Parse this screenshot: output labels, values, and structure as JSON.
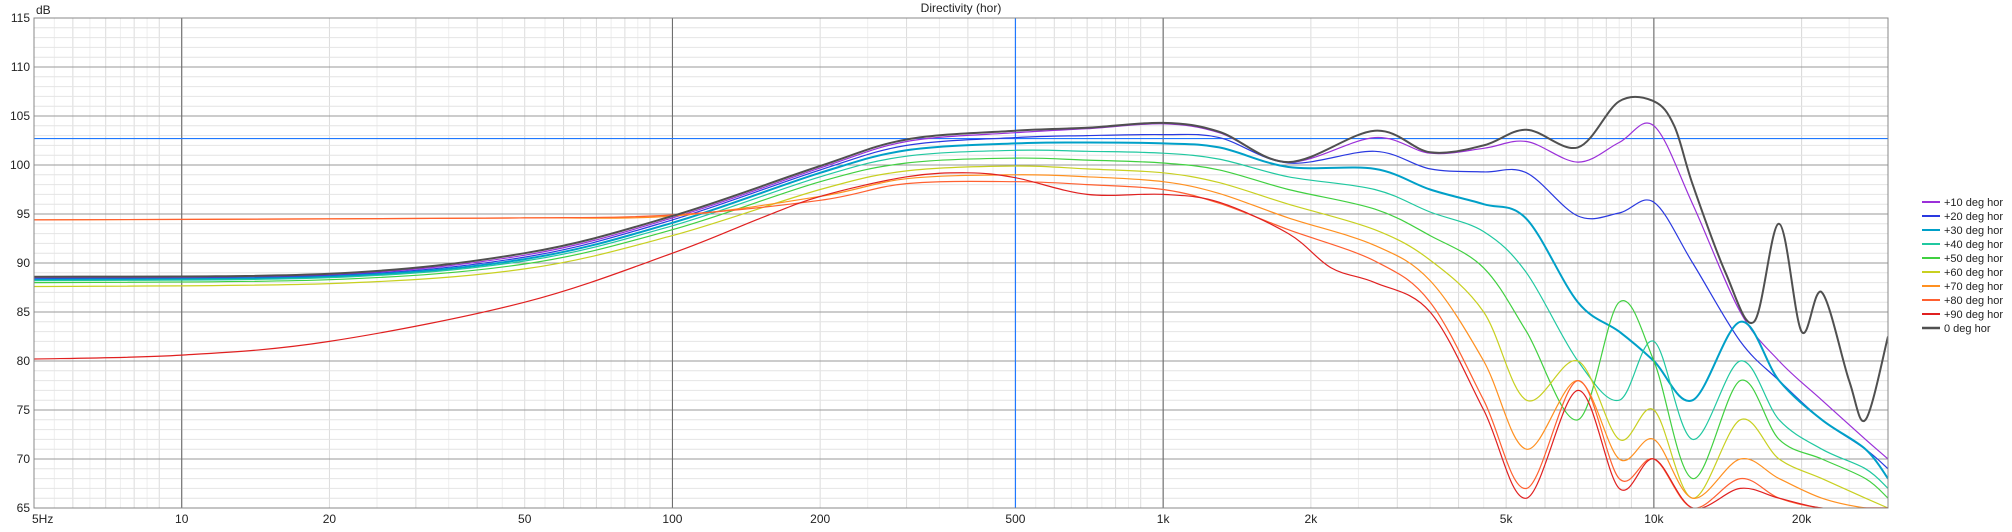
{
  "chart_data": {
    "type": "line",
    "title": "Directivity (hor)",
    "ylabel": "dB",
    "xlabel": "",
    "x_scale": "log",
    "xlim": [
      5,
      30000
    ],
    "ylim": [
      65,
      115
    ],
    "y_ticks": [
      65,
      70,
      75,
      80,
      85,
      90,
      95,
      100,
      105,
      110,
      115
    ],
    "x_ticks": [
      {
        "value": 5,
        "label": "5Hz"
      },
      {
        "value": 10,
        "label": "10"
      },
      {
        "value": 20,
        "label": "20"
      },
      {
        "value": 50,
        "label": "50"
      },
      {
        "value": 100,
        "label": "100"
      },
      {
        "value": 200,
        "label": "200"
      },
      {
        "value": 500,
        "label": "500"
      },
      {
        "value": 1000,
        "label": "1k"
      },
      {
        "value": 2000,
        "label": "2k"
      },
      {
        "value": 5000,
        "label": "5k"
      },
      {
        "value": 10000,
        "label": "10k"
      },
      {
        "value": 20000,
        "label": "20k"
      }
    ],
    "grid": true,
    "legend_position": "right",
    "markers": {
      "hline_db": 102.7,
      "vline_hz": 500,
      "color": "#1e78ff"
    },
    "series": [
      {
        "name": "+10 deg hor",
        "color": "#9b30d9",
        "x": [
          5,
          20,
          50,
          100,
          200,
          300,
          500,
          700,
          1000,
          1300,
          1800,
          2700,
          3500,
          4500,
          5500,
          7000,
          8500,
          10000,
          12000,
          15000,
          18000,
          22000,
          27000,
          30000
        ],
        "y": [
          88.5,
          88.8,
          90.8,
          94.6,
          99.7,
          102.4,
          103.3,
          103.7,
          104.2,
          103.3,
          100.3,
          102.8,
          101.2,
          101.7,
          102.4,
          100.3,
          102.3,
          104.0,
          96.0,
          85.0,
          80.0,
          76.0,
          72.0,
          70.0
        ]
      },
      {
        "name": "+20 deg hor",
        "color": "#2a39e0",
        "x": [
          5,
          20,
          50,
          100,
          200,
          300,
          500,
          700,
          1000,
          1300,
          1800,
          2700,
          3500,
          4500,
          5500,
          7000,
          8500,
          10000,
          12000,
          15000,
          18000,
          22000,
          27000,
          30000
        ],
        "y": [
          88.4,
          88.7,
          90.6,
          94.4,
          99.5,
          102.0,
          102.8,
          103.0,
          103.1,
          102.8,
          100.2,
          101.4,
          99.6,
          99.3,
          99.2,
          94.8,
          95.1,
          96.2,
          90.0,
          82.0,
          78.0,
          74.0,
          71.0,
          69.0
        ]
      },
      {
        "name": "+30 deg hor",
        "color": "#00a0c8",
        "x": [
          5,
          20,
          50,
          100,
          200,
          300,
          500,
          700,
          1000,
          1300,
          1800,
          2700,
          3500,
          4500,
          5500,
          7000,
          8500,
          10000,
          12000,
          15000,
          18000,
          22000,
          27000,
          30000
        ],
        "y": [
          88.3,
          88.6,
          90.4,
          94.1,
          99.2,
          101.5,
          102.2,
          102.3,
          102.2,
          101.8,
          99.8,
          99.6,
          97.5,
          96.0,
          94.5,
          86.0,
          83.0,
          80.0,
          76.0,
          84.0,
          78.0,
          74.0,
          71.0,
          68.0
        ]
      },
      {
        "name": "+40 deg hor",
        "color": "#20c8a0",
        "x": [
          5,
          20,
          50,
          100,
          200,
          300,
          500,
          700,
          1000,
          1300,
          1800,
          2700,
          3500,
          4500,
          5500,
          7000,
          8500,
          10000,
          12000,
          15000,
          18000,
          22000,
          27000,
          30000
        ],
        "y": [
          88.2,
          88.5,
          90.2,
          93.8,
          98.8,
          100.9,
          101.5,
          101.4,
          101.2,
          100.6,
          98.8,
          97.5,
          95.2,
          93.2,
          89.0,
          80.0,
          76.0,
          82.0,
          72.0,
          80.0,
          74.0,
          71.0,
          69.0,
          67.0
        ]
      },
      {
        "name": "+50 deg hor",
        "color": "#40d040",
        "x": [
          5,
          20,
          50,
          100,
          200,
          300,
          500,
          700,
          1000,
          1300,
          1800,
          2700,
          3500,
          4500,
          5500,
          7000,
          8500,
          10000,
          12000,
          15000,
          18000,
          22000,
          27000,
          30000
        ],
        "y": [
          88.0,
          88.3,
          89.9,
          93.4,
          98.3,
          100.2,
          100.7,
          100.5,
          100.2,
          99.5,
          97.5,
          95.5,
          92.8,
          89.5,
          83.0,
          74.0,
          86.0,
          80.0,
          68.0,
          78.0,
          72.0,
          70.0,
          68.0,
          66.0
        ]
      },
      {
        "name": "+60 deg hor",
        "color": "#c8d020",
        "x": [
          5,
          20,
          50,
          100,
          200,
          300,
          500,
          700,
          1000,
          1300,
          1800,
          2700,
          3500,
          4500,
          5500,
          7000,
          8500,
          10000,
          12000,
          15000,
          18000,
          22000,
          27000,
          30000
        ],
        "y": [
          87.6,
          87.9,
          89.4,
          92.8,
          97.5,
          99.4,
          99.9,
          99.6,
          99.2,
          98.2,
          96.0,
          93.4,
          90.3,
          85.0,
          76.0,
          80.0,
          72.0,
          75.0,
          66.0,
          74.0,
          70.0,
          68.0,
          66.0,
          65.0
        ]
      },
      {
        "name": "+70 deg hor",
        "color": "#ff9020",
        "x": [
          5,
          20,
          50,
          100,
          200,
          300,
          500,
          700,
          1000,
          1300,
          1800,
          2700,
          3500,
          4500,
          5500,
          7000,
          8500,
          10000,
          12000,
          15000,
          18000,
          22000,
          27000,
          30000
        ],
        "y": [
          94.4,
          94.5,
          94.6,
          94.8,
          96.8,
          98.6,
          99.0,
          98.8,
          98.3,
          97.1,
          94.6,
          91.8,
          88.2,
          80.0,
          71.0,
          78.0,
          70.0,
          72.0,
          66.0,
          70.0,
          68.0,
          66.0,
          65.0,
          65.0
        ]
      },
      {
        "name": "+80 deg hor",
        "color": "#ff6030",
        "x": [
          5,
          20,
          50,
          100,
          200,
          300,
          500,
          700,
          1000,
          1300,
          1800,
          2700,
          3500,
          4500,
          5500,
          7000,
          8500,
          10000,
          12000,
          15000,
          18000,
          22000,
          27000,
          30000
        ],
        "y": [
          94.4,
          94.5,
          94.6,
          94.9,
          96.4,
          98.1,
          98.3,
          98.0,
          97.5,
          96.1,
          93.4,
          90.2,
          86.0,
          76.0,
          67.0,
          78.0,
          68.0,
          70.0,
          65.0,
          68.0,
          66.0,
          65.0,
          65.0,
          65.0
        ]
      },
      {
        "name": "+90 deg hor",
        "color": "#e02020",
        "x": [
          5,
          10,
          20,
          50,
          100,
          150,
          200,
          300,
          400,
          500,
          700,
          1000,
          1300,
          1800,
          2200,
          2700,
          3500,
          4500,
          5500,
          7000,
          8500,
          10000,
          12000,
          15000,
          18000,
          22000,
          27000,
          30000
        ],
        "y": [
          80.2,
          80.6,
          82.0,
          86.0,
          91.0,
          94.5,
          96.8,
          98.8,
          99.2,
          98.7,
          97.0,
          97.0,
          96.2,
          93.0,
          89.5,
          88.0,
          85.0,
          75.0,
          66.0,
          77.0,
          67.0,
          70.0,
          65.0,
          67.0,
          66.0,
          65.0,
          65.0,
          65.0
        ]
      },
      {
        "name": "0 deg hor",
        "color": "#505050",
        "x": [
          5,
          20,
          50,
          100,
          200,
          300,
          500,
          700,
          1000,
          1300,
          1800,
          2700,
          3500,
          4500,
          5500,
          7000,
          8500,
          10000,
          11000,
          12000,
          14000,
          16000,
          18000,
          20000,
          22000,
          25000,
          27000,
          30000
        ],
        "y": [
          88.6,
          88.9,
          91.0,
          94.8,
          99.9,
          102.6,
          103.5,
          103.8,
          104.3,
          103.4,
          100.3,
          103.5,
          101.3,
          102.0,
          103.6,
          101.8,
          106.5,
          106.5,
          104.0,
          98.0,
          89.0,
          84.0,
          94.0,
          83.0,
          87.0,
          78.0,
          74.0,
          82.5
        ]
      }
    ]
  }
}
